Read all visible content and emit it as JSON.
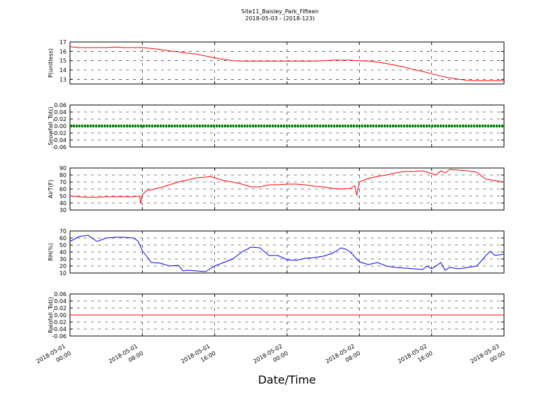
{
  "figure": {
    "title": "Site11_Baisley_Park_Fifteen",
    "subtitle": "2018-05-03 - (2018-123)",
    "xlabel": "Date/Time"
  },
  "chart_data": [
    {
      "type": "line",
      "ylabel": "P(unitless)",
      "color": "#ff0000",
      "ylim": [
        12.5,
        17
      ],
      "yticks": [
        13,
        14,
        15,
        16,
        17
      ],
      "ytick_labels": [
        "13",
        "14",
        "15",
        "16",
        "17"
      ],
      "xlim": [
        "2018-05-01 00:00",
        "2018-05-03 00:00"
      ],
      "grid": true,
      "series": [
        {
          "name": "",
          "x_hours": [
            0,
            1,
            2,
            3,
            4,
            5,
            6,
            7,
            8,
            9,
            10,
            11,
            12,
            13,
            14,
            15,
            16,
            17,
            18,
            19,
            20,
            21,
            22,
            23,
            24,
            25,
            26,
            27,
            28,
            29,
            30,
            31,
            32,
            33,
            34,
            35,
            36,
            37,
            38,
            39,
            40,
            41,
            42,
            43,
            44,
            45,
            46,
            47,
            48
          ],
          "values": [
            16.5,
            16.4,
            16.4,
            16.4,
            16.4,
            16.45,
            16.4,
            16.4,
            16.4,
            16.3,
            16.2,
            16.05,
            15.95,
            15.8,
            15.7,
            15.5,
            15.3,
            15.15,
            15.0,
            14.95,
            14.95,
            14.95,
            14.95,
            14.95,
            14.95,
            14.95,
            14.95,
            14.95,
            15.0,
            15.05,
            15.05,
            15.05,
            15.0,
            14.95,
            14.85,
            14.7,
            14.5,
            14.3,
            14.05,
            13.85,
            13.6,
            13.35,
            13.15,
            13.0,
            12.9,
            12.85,
            12.85,
            12.85,
            12.85
          ]
        }
      ]
    },
    {
      "type": "line",
      "ylabel": "Snowfall_Tot()",
      "color": "#008000",
      "ylim": [
        -0.06,
        0.06
      ],
      "yticks": [
        -0.06,
        -0.04,
        -0.02,
        0.0,
        0.02,
        0.04,
        0.06
      ],
      "ytick_labels": [
        "-0.06",
        "-0.04",
        "-0.02",
        "0.00",
        "0.02",
        "0.04",
        "0.06"
      ],
      "xlim": [
        "2018-05-01 00:00",
        "2018-05-03 00:00"
      ],
      "grid": true,
      "series": [
        {
          "name": "",
          "x_hours": [
            0,
            48
          ],
          "values": [
            0,
            0
          ]
        }
      ]
    },
    {
      "type": "line",
      "ylabel": "AirT(F)",
      "color": "#ff0000",
      "ylim": [
        30,
        90
      ],
      "yticks": [
        30,
        40,
        50,
        60,
        70,
        80,
        90
      ],
      "ytick_labels": [
        "30",
        "40",
        "50",
        "60",
        "70",
        "80",
        "90"
      ],
      "xlim": [
        "2018-05-01 00:00",
        "2018-05-03 00:00"
      ],
      "grid": true,
      "series": [
        {
          "name": "",
          "x_hours": [
            0,
            1,
            2,
            3,
            4,
            5,
            6,
            7,
            7.7,
            7.8,
            8,
            8.5,
            9,
            10,
            11,
            12,
            13,
            14,
            15,
            15.5,
            16,
            17,
            18,
            19,
            20,
            21,
            22,
            23,
            24,
            25,
            26,
            27,
            28,
            29,
            30,
            31,
            31.5,
            31.7,
            32,
            33,
            34,
            35,
            36,
            37,
            38,
            39,
            40,
            40.5,
            41,
            41.5,
            42,
            43,
            44,
            45,
            46,
            47,
            48
          ],
          "values": [
            50,
            49,
            48,
            48,
            49,
            49,
            49,
            49,
            50,
            39,
            52,
            58,
            59,
            62,
            66,
            70,
            73,
            76,
            77,
            78,
            76,
            72,
            70,
            67,
            63,
            63,
            66,
            66,
            67,
            67,
            66,
            64,
            63,
            61,
            60,
            61,
            65,
            51,
            70,
            75,
            78,
            80,
            83,
            85,
            85,
            86,
            82,
            80,
            86,
            83,
            88,
            87,
            86,
            84,
            74,
            72,
            70
          ]
        }
      ]
    },
    {
      "type": "line",
      "ylabel": "RH(%)",
      "color": "#0000ff",
      "ylim": [
        10,
        70
      ],
      "yticks": [
        10,
        20,
        30,
        40,
        50,
        60,
        70
      ],
      "ytick_labels": [
        "10",
        "20",
        "30",
        "40",
        "50",
        "60",
        "70"
      ],
      "xlim": [
        "2018-05-01 00:00",
        "2018-05-03 00:00"
      ],
      "grid": true,
      "series": [
        {
          "name": "",
          "x_hours": [
            0,
            1,
            2,
            3,
            4,
            5,
            6,
            7,
            7.5,
            8,
            9,
            10,
            11,
            12,
            12.5,
            13,
            14,
            15,
            15.5,
            16,
            17,
            18,
            19,
            20,
            21,
            22,
            23,
            24,
            25,
            26,
            27,
            28,
            29,
            30,
            30.5,
            31,
            32,
            33,
            34,
            35,
            36,
            37,
            38,
            39,
            39.5,
            40,
            40.5,
            41,
            41.5,
            42,
            43,
            44,
            45,
            46,
            46.5,
            47,
            48
          ],
          "values": [
            55,
            62,
            64,
            55,
            60,
            61,
            61,
            60,
            56,
            42,
            25,
            24,
            20,
            21,
            13,
            14,
            13,
            12,
            16,
            20,
            25,
            30,
            40,
            47,
            46,
            35,
            35,
            29,
            28,
            31,
            32,
            34,
            38,
            46,
            44,
            40,
            26,
            22,
            25,
            20,
            18,
            17,
            16,
            15,
            20,
            16,
            20,
            25,
            14,
            18,
            16,
            18,
            20,
            35,
            41,
            35,
            37
          ]
        }
      ]
    },
    {
      "type": "line",
      "ylabel": "Rainfall_Tot()",
      "color": "#ff0000",
      "ylim": [
        -0.06,
        0.06
      ],
      "yticks": [
        -0.06,
        -0.04,
        -0.02,
        0.0,
        0.02,
        0.04,
        0.06
      ],
      "ytick_labels": [
        "-0.06",
        "-0.04",
        "-0.02",
        "0.00",
        "0.02",
        "0.04",
        "0.06"
      ],
      "xlim": [
        "2018-05-01 00:00",
        "2018-05-03 00:00"
      ],
      "grid": true,
      "series": [
        {
          "name": "",
          "x_hours": [
            0,
            48
          ],
          "values": [
            0,
            0
          ]
        }
      ]
    }
  ],
  "xticks": {
    "hours": [
      0,
      8,
      16,
      24,
      32,
      40,
      48
    ],
    "date_labels": [
      "2018-05-01",
      "2018-05-01",
      "2018-05-01",
      "2018-05-02",
      "2018-05-02",
      "2018-05-02",
      "2018-05-03"
    ],
    "time_labels": [
      "00:00",
      "08:00",
      "16:00",
      "00:00",
      "08:00",
      "16:00",
      "00:00"
    ]
  }
}
